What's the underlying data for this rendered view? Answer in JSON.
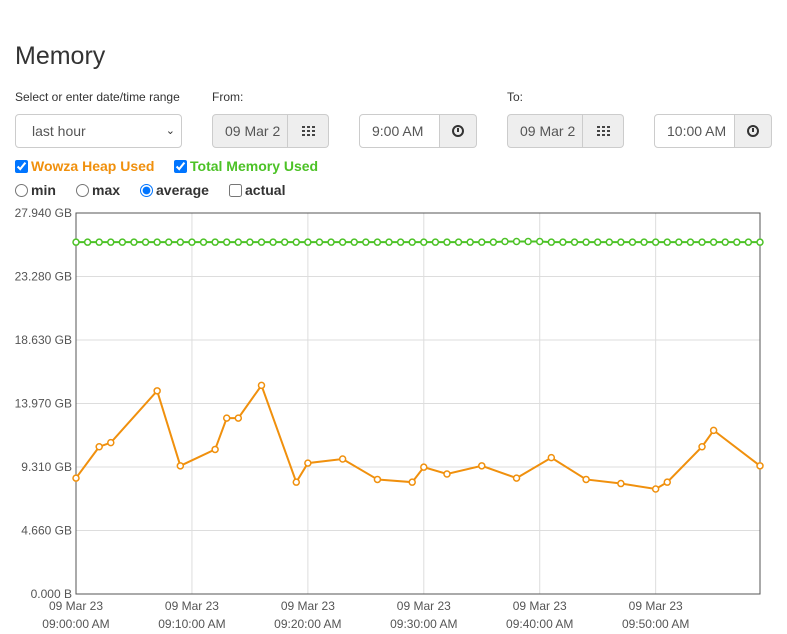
{
  "page": {
    "title": "Memory"
  },
  "range": {
    "label": "Select or enter date/time range",
    "selected": "last hour"
  },
  "from": {
    "label": "From:",
    "date": "09 Mar 2",
    "time": "9:00 AM"
  },
  "to": {
    "label": "To:",
    "date": "09 Mar 2",
    "time": "10:00 AM"
  },
  "series_toggles": [
    {
      "label": "Wowza Heap Used",
      "checked": true,
      "color": "#f0900d"
    },
    {
      "label": "Total Memory Used",
      "checked": true,
      "color": "#4cc226"
    }
  ],
  "aggregation": {
    "options": [
      "min",
      "max",
      "average"
    ],
    "selected": "average",
    "actual_label": "actual",
    "actual_checked": false
  },
  "chart_data": {
    "type": "line",
    "y_ticks": [
      "0.000 B",
      "4.660 GB",
      "9.310 GB",
      "13.970 GB",
      "18.630 GB",
      "23.280 GB",
      "27.940 GB"
    ],
    "ylim": [
      0,
      27.94
    ],
    "x_ticks": [
      {
        "date": "09 Mar 23",
        "time": "09:00:00 AM",
        "t": 0
      },
      {
        "date": "09 Mar 23",
        "time": "09:10:00 AM",
        "t": 10
      },
      {
        "date": "09 Mar 23",
        "time": "09:20:00 AM",
        "t": 20
      },
      {
        "date": "09 Mar 23",
        "time": "09:30:00 AM",
        "t": 30
      },
      {
        "date": "09 Mar 23",
        "time": "09:40:00 AM",
        "t": 40
      },
      {
        "date": "09 Mar 23",
        "time": "09:50:00 AM",
        "t": 50
      }
    ],
    "xlim": [
      0,
      59
    ],
    "grid": true,
    "series": [
      {
        "color": "#f0900d",
        "points": [
          [
            0,
            8.5
          ],
          [
            2,
            10.8
          ],
          [
            3,
            11.1
          ],
          [
            7,
            14.9
          ],
          [
            9,
            9.4
          ],
          [
            12,
            10.6
          ],
          [
            13,
            12.9
          ],
          [
            14,
            12.9
          ],
          [
            16,
            15.3
          ],
          [
            19,
            8.2
          ],
          [
            20,
            9.6
          ],
          [
            23,
            9.9
          ],
          [
            26,
            8.4
          ],
          [
            29,
            8.2
          ],
          [
            30,
            9.3
          ],
          [
            32,
            8.8
          ],
          [
            35,
            9.4
          ],
          [
            38,
            8.5
          ],
          [
            41,
            10.0
          ],
          [
            44,
            8.4
          ],
          [
            47,
            8.1
          ],
          [
            50,
            7.7
          ],
          [
            51,
            8.2
          ],
          [
            54,
            10.8
          ],
          [
            55,
            12.0
          ],
          [
            59,
            9.4
          ]
        ]
      },
      {
        "color": "#4cc226",
        "points": [
          [
            0,
            25.8
          ],
          [
            1,
            25.8
          ],
          [
            2,
            25.8
          ],
          [
            3,
            25.8
          ],
          [
            4,
            25.8
          ],
          [
            5,
            25.8
          ],
          [
            6,
            25.8
          ],
          [
            7,
            25.8
          ],
          [
            8,
            25.8
          ],
          [
            9,
            25.8
          ],
          [
            10,
            25.8
          ],
          [
            11,
            25.8
          ],
          [
            12,
            25.8
          ],
          [
            13,
            25.8
          ],
          [
            14,
            25.8
          ],
          [
            15,
            25.8
          ],
          [
            16,
            25.8
          ],
          [
            17,
            25.8
          ],
          [
            18,
            25.8
          ],
          [
            19,
            25.8
          ],
          [
            20,
            25.8
          ],
          [
            21,
            25.8
          ],
          [
            22,
            25.8
          ],
          [
            23,
            25.8
          ],
          [
            24,
            25.8
          ],
          [
            25,
            25.8
          ],
          [
            26,
            25.8
          ],
          [
            27,
            25.8
          ],
          [
            28,
            25.8
          ],
          [
            29,
            25.8
          ],
          [
            30,
            25.8
          ],
          [
            31,
            25.8
          ],
          [
            32,
            25.8
          ],
          [
            33,
            25.8
          ],
          [
            34,
            25.8
          ],
          [
            35,
            25.8
          ],
          [
            36,
            25.8
          ],
          [
            37,
            25.85
          ],
          [
            38,
            25.85
          ],
          [
            39,
            25.85
          ],
          [
            40,
            25.85
          ],
          [
            41,
            25.8
          ],
          [
            42,
            25.8
          ],
          [
            43,
            25.8
          ],
          [
            44,
            25.8
          ],
          [
            45,
            25.8
          ],
          [
            46,
            25.8
          ],
          [
            47,
            25.8
          ],
          [
            48,
            25.8
          ],
          [
            49,
            25.8
          ],
          [
            50,
            25.8
          ],
          [
            51,
            25.8
          ],
          [
            52,
            25.8
          ],
          [
            53,
            25.8
          ],
          [
            54,
            25.8
          ],
          [
            55,
            25.8
          ],
          [
            56,
            25.8
          ],
          [
            57,
            25.8
          ],
          [
            58,
            25.8
          ],
          [
            59,
            25.8
          ]
        ]
      }
    ]
  }
}
